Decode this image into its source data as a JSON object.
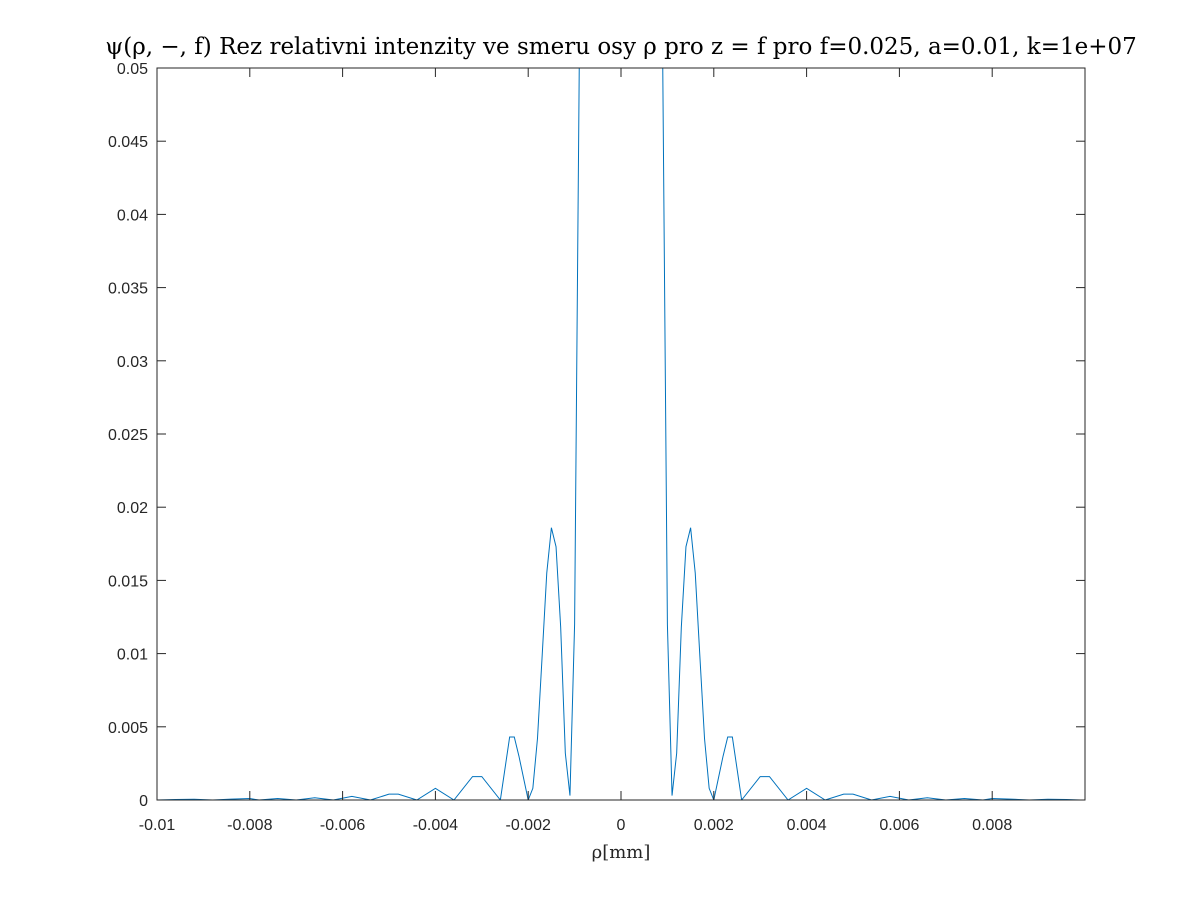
{
  "chart_data": {
    "type": "line",
    "title": "ψ(ρ, −, f) Rez relativni intenzity ve smeru osy ρ pro z = f pro f=0.025, a=0.01, k=1e+07",
    "xlabel": "ρ[mm]",
    "ylabel": "",
    "xlim": [
      -0.01,
      0.01
    ],
    "ylim": [
      0,
      0.05
    ],
    "x_ticks": [
      -0.01,
      -0.008,
      -0.006,
      -0.004,
      -0.002,
      0,
      0.002,
      0.004,
      0.006,
      0.008
    ],
    "x_tick_labels": [
      "-0.01",
      "-0.008",
      "-0.006",
      "-0.004",
      "-0.002",
      "0",
      "0.002",
      "0.004",
      "0.006",
      "0.008"
    ],
    "y_ticks": [
      0,
      0.005,
      0.01,
      0.015,
      0.02,
      0.025,
      0.03,
      0.035,
      0.04,
      0.045,
      0.05
    ],
    "y_tick_labels": [
      "0",
      "0.005",
      "0.01",
      "0.015",
      "0.02",
      "0.025",
      "0.03",
      "0.035",
      "0.04",
      "0.045",
      "0.05"
    ],
    "grid": false,
    "box": true,
    "series": [
      {
        "color": "#0072BD",
        "x": [
          -0.01,
          -0.0096,
          -0.0092,
          -0.0088,
          -0.0084,
          -0.008,
          -0.0078,
          -0.0074,
          -0.007,
          -0.0066,
          -0.0062,
          -0.0058,
          -0.0054,
          -0.005,
          -0.0048,
          -0.0044,
          -0.004,
          -0.0036,
          -0.0032,
          -0.003,
          -0.0026,
          -0.0024,
          -0.0023,
          -0.0022,
          -0.002,
          -0.0019,
          -0.0018,
          -0.0017,
          -0.0016,
          -0.0015,
          -0.0014,
          -0.0013,
          -0.0012,
          -0.0011,
          -0.001,
          -0.0009,
          -0.0008,
          0.0008,
          0.0009,
          0.001,
          0.0011,
          0.0012,
          0.0013,
          0.0014,
          0.0015,
          0.0016,
          0.0017,
          0.0018,
          0.0019,
          0.002,
          0.0022,
          0.0023,
          0.0024,
          0.0026,
          0.003,
          0.0032,
          0.0036,
          0.004,
          0.0044,
          0.0048,
          0.005,
          0.0054,
          0.0058,
          0.0062,
          0.0066,
          0.007,
          0.0074,
          0.0078,
          0.008,
          0.0084,
          0.0088,
          0.0092,
          0.0096,
          0.0099
        ],
        "y": [
          0,
          3e-05,
          5e-05,
          0,
          6e-05,
          0.0001,
          0,
          0.0001,
          0,
          0.00015,
          0,
          0.00025,
          0,
          0.0004,
          0.0004,
          0,
          0.0008,
          0,
          0.0016,
          0.0016,
          0,
          0.0043,
          0.0043,
          0.003,
          0,
          0.0008,
          0.0042,
          0.0098,
          0.0155,
          0.0186,
          0.0173,
          0.0118,
          0.0032,
          0.0003,
          0.012,
          0.05,
          0.05,
          0.05,
          0.05,
          0.012,
          0.0003,
          0.0032,
          0.0118,
          0.0173,
          0.0186,
          0.0155,
          0.0098,
          0.0042,
          0.0008,
          0,
          0.003,
          0.0043,
          0.0043,
          0,
          0.0016,
          0.0016,
          0,
          0.0008,
          0,
          0.0004,
          0.0004,
          0,
          0.00025,
          0,
          0.00015,
          0,
          0.0001,
          0,
          0.0001,
          6e-05,
          0,
          5e-05,
          3e-05,
          0
        ]
      }
    ]
  }
}
